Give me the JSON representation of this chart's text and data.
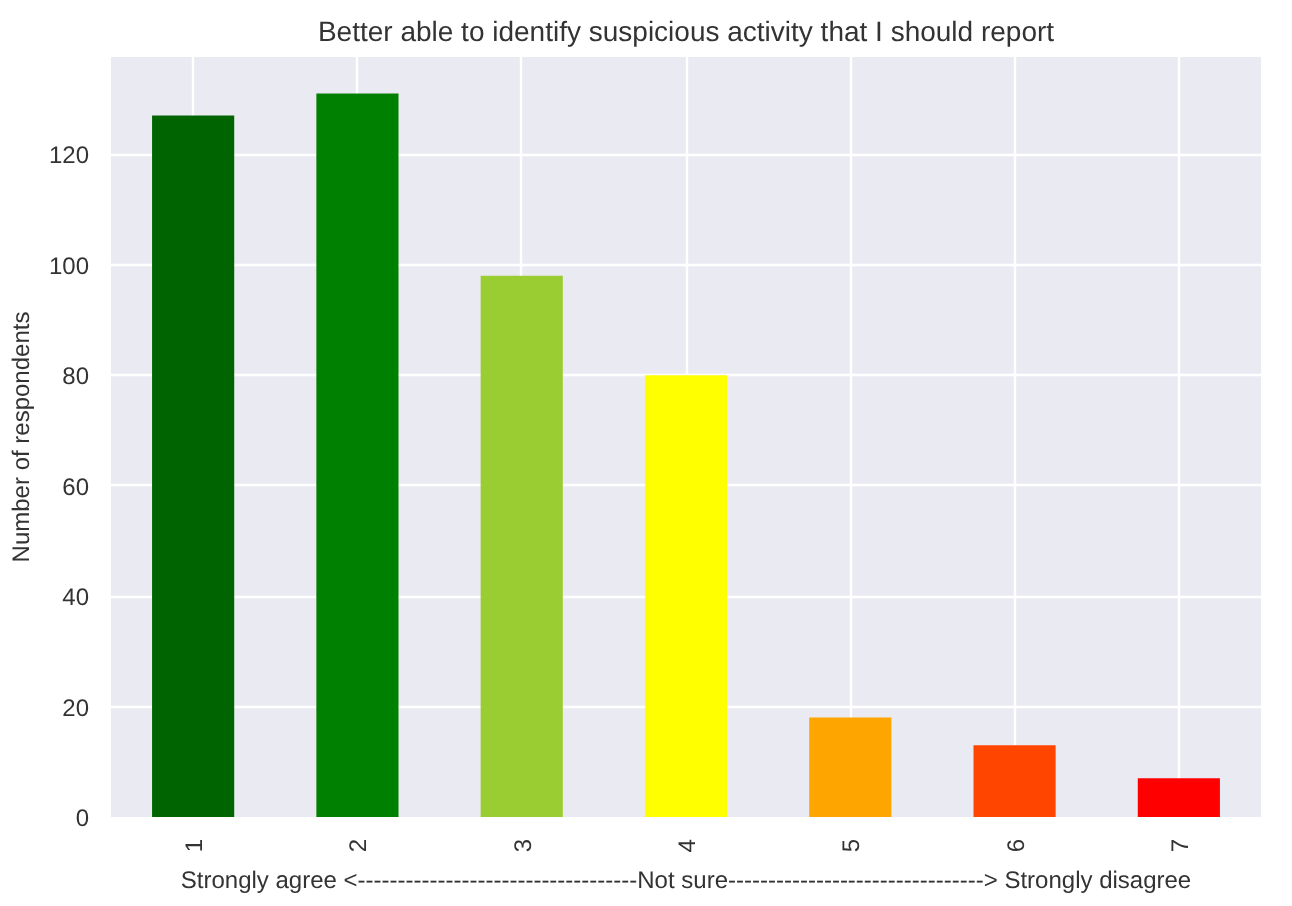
{
  "chart_data": {
    "type": "bar",
    "title": "Better able to identify suspicious activity that I should report",
    "xlabel": "Strongly agree <-----------------------------------Not sure--------------------------------> Strongly disagree",
    "ylabel": "Number of respondents",
    "categories": [
      "1",
      "2",
      "3",
      "4",
      "5",
      "6",
      "7"
    ],
    "values": [
      127,
      131,
      98,
      80,
      18,
      13,
      7
    ],
    "colors": [
      "#006400",
      "#008000",
      "#9acd32",
      "#ffff00",
      "#ffa500",
      "#ff4500",
      "#ff0000"
    ],
    "ylim": [
      0,
      137.6
    ],
    "yticks": [
      0,
      20,
      40,
      60,
      80,
      100,
      120
    ],
    "grid": true
  }
}
